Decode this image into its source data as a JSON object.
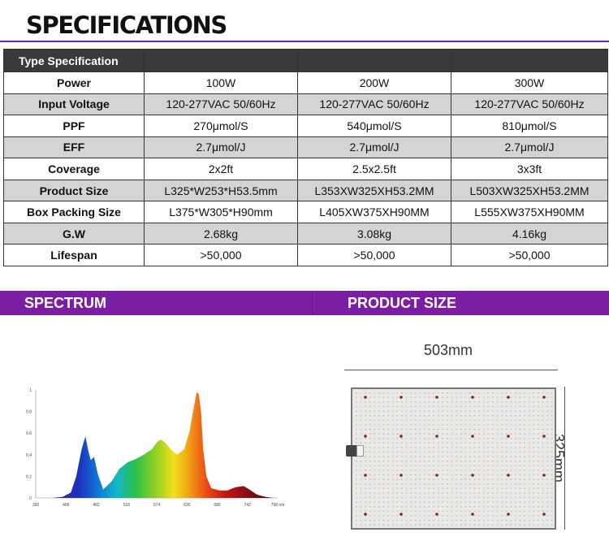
{
  "page_title": "SPECIFICATIONS",
  "table": {
    "header": [
      "Type Specification",
      "",
      "",
      ""
    ],
    "rows": [
      {
        "label": "Power",
        "values": [
          "100W",
          "200W",
          "300W"
        ]
      },
      {
        "label": "Input Voltage",
        "values": [
          "120-277VAC 50/60Hz",
          "120-277VAC 50/60Hz",
          "120-277VAC 50/60Hz"
        ]
      },
      {
        "label": "PPF",
        "values": [
          "270μmol/S",
          "540μmol/S",
          "810μmol/S"
        ]
      },
      {
        "label": "EFF",
        "values": [
          "2.7μmol/J",
          "2.7μmol/J",
          "2.7μmol/J"
        ]
      },
      {
        "label": "Coverage",
        "values": [
          "2x2ft",
          "2.5x2.5ft",
          "3x3ft"
        ]
      },
      {
        "label": "Product Size",
        "values": [
          "L325*W253*H53.5mm",
          "L353XW325XH53.2MM",
          "L503XW325XH53.2MM"
        ]
      },
      {
        "label": "Box Packing Size",
        "values": [
          "L375*W305*H90mm",
          "L405XW375XH90MM",
          "L555XW375XH90MM"
        ]
      },
      {
        "label": "G.W",
        "values": [
          "2.68kg",
          "3.08kg",
          "4.16kg"
        ]
      },
      {
        "label": "Lifespan",
        "values": [
          ">50,000",
          ">50,000",
          ">50,000"
        ]
      }
    ]
  },
  "sections": {
    "spectrum_title": "SPECTRUM",
    "product_size_title": "PRODUCT SIZE"
  },
  "product_size": {
    "width_label": "503mm",
    "height_label": "325mm"
  },
  "chart_data": {
    "type": "area",
    "x_ticks": [
      "350",
      "406",
      "462",
      "518",
      "574",
      "630",
      "686",
      "742",
      "798 nm"
    ],
    "y_ticks": [
      "0",
      "0.2",
      "0.4",
      "0.6",
      "0.8",
      "1"
    ],
    "xlim": [
      350,
      798
    ],
    "ylim": [
      0,
      1
    ],
    "xlabel": "",
    "ylabel": "",
    "x": [
      350,
      380,
      400,
      415,
      425,
      435,
      442,
      448,
      452,
      458,
      465,
      475,
      490,
      505,
      520,
      535,
      550,
      565,
      575,
      582,
      590,
      600,
      612,
      625,
      635,
      642,
      648,
      652,
      656,
      660,
      666,
      675,
      690,
      705,
      720,
      735,
      745,
      760,
      775,
      790
    ],
    "values": [
      0,
      0.0,
      0.01,
      0.05,
      0.2,
      0.45,
      0.57,
      0.42,
      0.35,
      0.38,
      0.22,
      0.08,
      0.15,
      0.27,
      0.33,
      0.36,
      0.4,
      0.45,
      0.52,
      0.54,
      0.51,
      0.45,
      0.4,
      0.45,
      0.62,
      0.82,
      0.98,
      0.96,
      0.8,
      0.45,
      0.2,
      0.09,
      0.07,
      0.07,
      0.1,
      0.11,
      0.08,
      0.03,
      0.01,
      0
    ]
  }
}
